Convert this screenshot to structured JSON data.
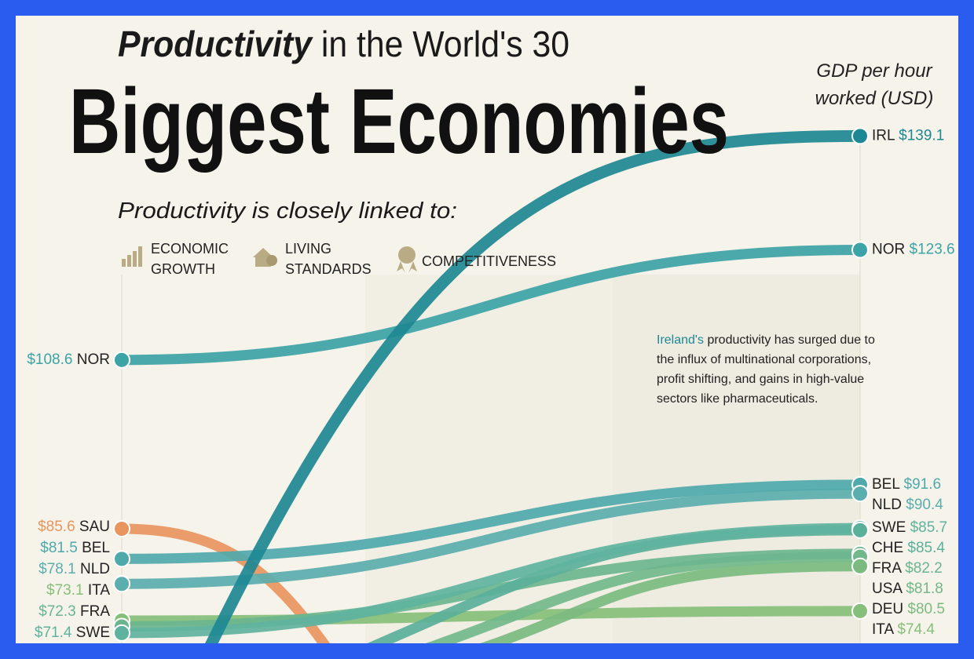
{
  "chart_data": {
    "type": "slope",
    "title_emphasis": "Productivity",
    "title_rest": "in the World's 30",
    "title_main": "Biggest Economies",
    "subtitle": "Productivity is closely linked to:",
    "links": [
      [
        "ECONOMIC",
        "GROWTH"
      ],
      [
        "LIVING",
        "STANDARDS"
      ],
      [
        "COMPETITIVENESS"
      ]
    ],
    "axis_label": [
      "GDP per hour",
      "worked (USD)"
    ],
    "annotation_emphasis": "Ireland's",
    "annotation_lines": [
      "productivity has surged due to",
      "the influx of multinational corporations,",
      "profit shifting, and gains in high-value",
      "sectors like pharmaceuticals."
    ],
    "ylim": [
      70,
      140
    ],
    "series": [
      {
        "name": "IRL",
        "color": "#1d8893",
        "values": [
          null,
          139.1
        ],
        "value_labels": [
          null,
          "$139.1"
        ]
      },
      {
        "name": "NOR",
        "color": "#3ca3a6",
        "values": [
          108.6,
          123.6
        ],
        "value_labels": [
          "$108.6",
          "$123.6"
        ]
      },
      {
        "name": "BEL",
        "color": "#4fa9ab",
        "values": [
          81.5,
          91.6
        ],
        "value_labels": [
          "$81.5",
          "$91.6"
        ]
      },
      {
        "name": "NLD",
        "color": "#5aaeae",
        "values": [
          78.1,
          90.4
        ],
        "value_labels": [
          "$78.1",
          "$90.4"
        ]
      },
      {
        "name": "SWE",
        "color": "#5fb39e",
        "values": [
          71.4,
          85.7
        ],
        "value_labels": [
          "$71.4",
          "$85.7"
        ]
      },
      {
        "name": "CHE",
        "color": "#5bb09a",
        "values": [
          null,
          85.4
        ],
        "value_labels": [
          null,
          "$85.4"
        ]
      },
      {
        "name": "FRA",
        "color": "#6bb58f",
        "values": [
          72.3,
          82.2
        ],
        "value_labels": [
          "$72.3",
          "$82.2"
        ]
      },
      {
        "name": "USA",
        "color": "#72b88a",
        "values": [
          null,
          81.8
        ],
        "value_labels": [
          null,
          "$81.8"
        ]
      },
      {
        "name": "DEU",
        "color": "#7cbb80",
        "values": [
          null,
          80.5
        ],
        "value_labels": [
          null,
          "$80.5"
        ]
      },
      {
        "name": "ITA",
        "color": "#86bf7a",
        "values": [
          73.1,
          74.4
        ],
        "value_labels": [
          "$73.1",
          "$74.4"
        ]
      },
      {
        "name": "SAU",
        "color": "#e8955e",
        "values": [
          85.6,
          null
        ],
        "value_labels": [
          "$85.6",
          null
        ]
      }
    ]
  }
}
